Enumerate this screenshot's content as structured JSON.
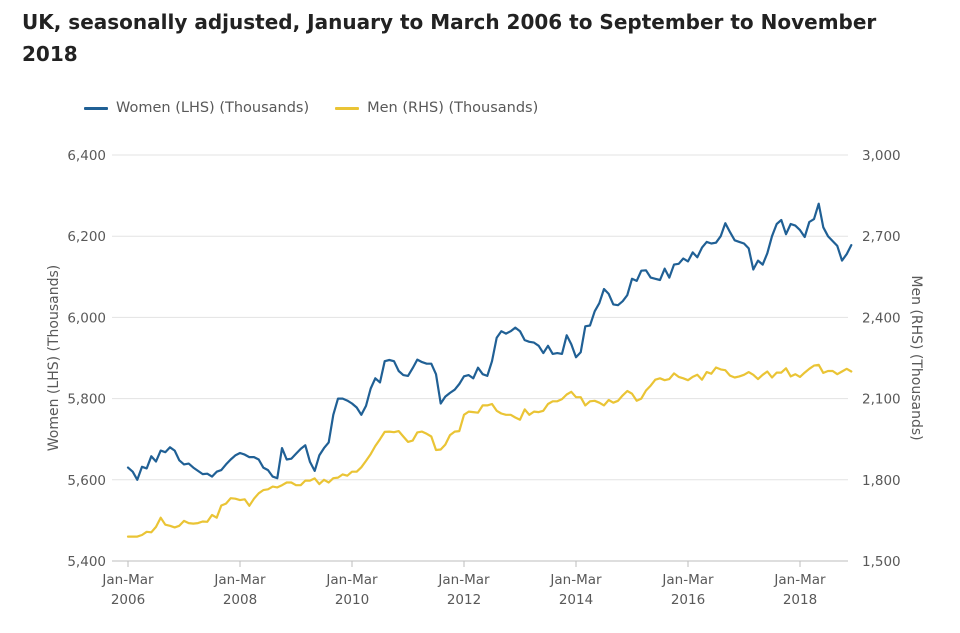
{
  "chart_data": {
    "type": "line",
    "title": "UK, seasonally adjusted, January to March 2006 to September to November 2018",
    "ylabel_left": "Women (LHS) (Thousands)",
    "ylabel_right": "Men (RHS) (Thousands)",
    "ylim_left": [
      5400,
      6400
    ],
    "ylim_right": [
      1500,
      3000
    ],
    "yticks_left": [
      "5,400",
      "5,600",
      "5,800",
      "6,000",
      "6,200",
      "6,400"
    ],
    "yticks_right": [
      "1,500",
      "1,800",
      "2,100",
      "2,400",
      "2,700",
      "3,000"
    ],
    "x_start_period": 0,
    "x_end_period": 152,
    "xticks": [
      {
        "period": 0,
        "line1": "Jan-Mar",
        "line2": "2006"
      },
      {
        "period": 24,
        "line1": "Jan-Mar",
        "line2": "2008"
      },
      {
        "period": 48,
        "line1": "Jan-Mar",
        "line2": "2010"
      },
      {
        "period": 72,
        "line1": "Jan-Mar",
        "line2": "2012"
      },
      {
        "period": 96,
        "line1": "Jan-Mar",
        "line2": "2014"
      },
      {
        "period": 120,
        "line1": "Jan-Mar",
        "line2": "2016"
      },
      {
        "period": 144,
        "line1": "Jan-Mar",
        "line2": "2018"
      }
    ],
    "legend_position": "top-left",
    "grid": true,
    "series": [
      {
        "name": "Women (LHS) (Thousands)",
        "axis": "left",
        "color": "#206095",
        "points": [
          [
            0,
            5630
          ],
          [
            1,
            5620
          ],
          [
            2,
            5600
          ],
          [
            3,
            5632
          ],
          [
            4,
            5628
          ],
          [
            5,
            5658
          ],
          [
            6,
            5645
          ],
          [
            7,
            5672
          ],
          [
            8,
            5668
          ],
          [
            9,
            5680
          ],
          [
            10,
            5672
          ],
          [
            11,
            5648
          ],
          [
            12,
            5638
          ],
          [
            13,
            5640
          ],
          [
            14,
            5630
          ],
          [
            15,
            5622
          ],
          [
            16,
            5614
          ],
          [
            17,
            5615
          ],
          [
            18,
            5608
          ],
          [
            19,
            5620
          ],
          [
            20,
            5624
          ],
          [
            21,
            5638
          ],
          [
            22,
            5650
          ],
          [
            23,
            5660
          ],
          [
            24,
            5666
          ],
          [
            25,
            5662
          ],
          [
            26,
            5656
          ],
          [
            27,
            5656
          ],
          [
            28,
            5650
          ],
          [
            29,
            5630
          ],
          [
            30,
            5624
          ],
          [
            31,
            5608
          ],
          [
            32,
            5604
          ],
          [
            33,
            5678
          ],
          [
            34,
            5650
          ],
          [
            35,
            5652
          ],
          [
            36,
            5664
          ],
          [
            37,
            5676
          ],
          [
            38,
            5685
          ],
          [
            39,
            5644
          ],
          [
            40,
            5622
          ],
          [
            41,
            5660
          ],
          [
            42,
            5678
          ],
          [
            43,
            5692
          ],
          [
            44,
            5760
          ],
          [
            45,
            5800
          ],
          [
            46,
            5800
          ],
          [
            47,
            5795
          ],
          [
            48,
            5788
          ],
          [
            49,
            5778
          ],
          [
            50,
            5760
          ],
          [
            51,
            5782
          ],
          [
            52,
            5825
          ],
          [
            53,
            5850
          ],
          [
            54,
            5840
          ],
          [
            55,
            5892
          ],
          [
            56,
            5895
          ],
          [
            57,
            5892
          ],
          [
            58,
            5868
          ],
          [
            59,
            5858
          ],
          [
            60,
            5856
          ],
          [
            61,
            5875
          ],
          [
            62,
            5896
          ],
          [
            63,
            5890
          ],
          [
            64,
            5886
          ],
          [
            65,
            5886
          ],
          [
            66,
            5860
          ],
          [
            67,
            5788
          ],
          [
            68,
            5805
          ],
          [
            69,
            5814
          ],
          [
            70,
            5822
          ],
          [
            71,
            5836
          ],
          [
            72,
            5855
          ],
          [
            73,
            5858
          ],
          [
            74,
            5850
          ],
          [
            75,
            5876
          ],
          [
            76,
            5860
          ],
          [
            77,
            5856
          ],
          [
            78,
            5892
          ],
          [
            79,
            5950
          ],
          [
            80,
            5966
          ],
          [
            81,
            5960
          ],
          [
            82,
            5966
          ],
          [
            83,
            5975
          ],
          [
            84,
            5966
          ],
          [
            85,
            5944
          ],
          [
            86,
            5940
          ],
          [
            87,
            5938
          ],
          [
            88,
            5930
          ],
          [
            89,
            5912
          ],
          [
            90,
            5930
          ],
          [
            91,
            5910
          ],
          [
            92,
            5912
          ],
          [
            93,
            5910
          ],
          [
            94,
            5956
          ],
          [
            95,
            5934
          ],
          [
            96,
            5902
          ],
          [
            97,
            5914
          ],
          [
            98,
            5978
          ],
          [
            99,
            5980
          ],
          [
            100,
            6015
          ],
          [
            101,
            6035
          ],
          [
            102,
            6070
          ],
          [
            103,
            6058
          ],
          [
            104,
            6032
          ],
          [
            105,
            6030
          ],
          [
            106,
            6040
          ],
          [
            107,
            6055
          ],
          [
            108,
            6095
          ],
          [
            109,
            6090
          ],
          [
            110,
            6115
          ],
          [
            111,
            6116
          ],
          [
            112,
            6098
          ],
          [
            113,
            6095
          ],
          [
            114,
            6092
          ],
          [
            115,
            6120
          ],
          [
            116,
            6098
          ],
          [
            117,
            6130
          ],
          [
            118,
            6132
          ],
          [
            119,
            6145
          ],
          [
            120,
            6138
          ],
          [
            121,
            6160
          ],
          [
            122,
            6148
          ],
          [
            123,
            6172
          ],
          [
            124,
            6186
          ],
          [
            125,
            6182
          ],
          [
            126,
            6184
          ],
          [
            127,
            6200
          ],
          [
            128,
            6232
          ],
          [
            129,
            6210
          ],
          [
            130,
            6190
          ],
          [
            131,
            6186
          ],
          [
            132,
            6182
          ],
          [
            133,
            6170
          ],
          [
            134,
            6118
          ],
          [
            135,
            6140
          ],
          [
            136,
            6130
          ],
          [
            137,
            6158
          ],
          [
            138,
            6200
          ],
          [
            139,
            6230
          ],
          [
            140,
            6240
          ],
          [
            141,
            6205
          ],
          [
            142,
            6230
          ],
          [
            143,
            6226
          ],
          [
            144,
            6215
          ],
          [
            145,
            6198
          ],
          [
            146,
            6235
          ],
          [
            147,
            6242
          ],
          [
            148,
            6280
          ],
          [
            149,
            6222
          ],
          [
            150,
            6200
          ],
          [
            151,
            6188
          ],
          [
            152,
            6176
          ],
          [
            153,
            6140
          ],
          [
            154,
            6156
          ],
          [
            155,
            6178
          ]
        ]
      },
      {
        "name": "Men (RHS) (Thousands)",
        "axis": "right",
        "color": "#eac435",
        "points": [
          [
            0,
            1590
          ],
          [
            1,
            1590
          ],
          [
            2,
            1590
          ],
          [
            3,
            1596
          ],
          [
            4,
            1608
          ],
          [
            5,
            1606
          ],
          [
            6,
            1626
          ],
          [
            7,
            1660
          ],
          [
            8,
            1634
          ],
          [
            9,
            1630
          ],
          [
            10,
            1624
          ],
          [
            11,
            1630
          ],
          [
            12,
            1648
          ],
          [
            13,
            1640
          ],
          [
            14,
            1638
          ],
          [
            15,
            1640
          ],
          [
            16,
            1646
          ],
          [
            17,
            1645
          ],
          [
            18,
            1670
          ],
          [
            19,
            1660
          ],
          [
            20,
            1705
          ],
          [
            21,
            1712
          ],
          [
            22,
            1732
          ],
          [
            23,
            1730
          ],
          [
            24,
            1725
          ],
          [
            25,
            1728
          ],
          [
            26,
            1704
          ],
          [
            27,
            1730
          ],
          [
            28,
            1750
          ],
          [
            29,
            1762
          ],
          [
            30,
            1765
          ],
          [
            31,
            1775
          ],
          [
            32,
            1772
          ],
          [
            33,
            1780
          ],
          [
            34,
            1790
          ],
          [
            35,
            1790
          ],
          [
            36,
            1780
          ],
          [
            37,
            1780
          ],
          [
            38,
            1797
          ],
          [
            39,
            1797
          ],
          [
            40,
            1805
          ],
          [
            41,
            1784
          ],
          [
            42,
            1800
          ],
          [
            43,
            1790
          ],
          [
            44,
            1806
          ],
          [
            45,
            1808
          ],
          [
            46,
            1820
          ],
          [
            47,
            1815
          ],
          [
            48,
            1830
          ],
          [
            49,
            1830
          ],
          [
            50,
            1846
          ],
          [
            51,
            1870
          ],
          [
            52,
            1895
          ],
          [
            53,
            1925
          ],
          [
            54,
            1950
          ],
          [
            55,
            1977
          ],
          [
            56,
            1978
          ],
          [
            57,
            1976
          ],
          [
            58,
            1980
          ],
          [
            59,
            1960
          ],
          [
            60,
            1940
          ],
          [
            61,
            1945
          ],
          [
            62,
            1975
          ],
          [
            63,
            1978
          ],
          [
            64,
            1970
          ],
          [
            65,
            1960
          ],
          [
            66,
            1910
          ],
          [
            67,
            1912
          ],
          [
            68,
            1930
          ],
          [
            69,
            1965
          ],
          [
            70,
            1978
          ],
          [
            71,
            1980
          ],
          [
            72,
            2040
          ],
          [
            73,
            2052
          ],
          [
            74,
            2050
          ],
          [
            75,
            2048
          ],
          [
            76,
            2075
          ],
          [
            77,
            2075
          ],
          [
            78,
            2080
          ],
          [
            79,
            2055
          ],
          [
            80,
            2045
          ],
          [
            81,
            2040
          ],
          [
            82,
            2040
          ],
          [
            83,
            2030
          ],
          [
            84,
            2022
          ],
          [
            85,
            2060
          ],
          [
            86,
            2040
          ],
          [
            87,
            2052
          ],
          [
            88,
            2050
          ],
          [
            89,
            2055
          ],
          [
            90,
            2080
          ],
          [
            91,
            2090
          ],
          [
            92,
            2090
          ],
          [
            93,
            2098
          ],
          [
            94,
            2115
          ],
          [
            95,
            2125
          ],
          [
            96,
            2105
          ],
          [
            97,
            2105
          ],
          [
            98,
            2075
          ],
          [
            99,
            2090
          ],
          [
            100,
            2092
          ],
          [
            101,
            2085
          ],
          [
            102,
            2075
          ],
          [
            103,
            2095
          ],
          [
            104,
            2085
          ],
          [
            105,
            2092
          ],
          [
            106,
            2112
          ],
          [
            107,
            2128
          ],
          [
            108,
            2118
          ],
          [
            109,
            2092
          ],
          [
            110,
            2100
          ],
          [
            111,
            2130
          ],
          [
            112,
            2148
          ],
          [
            113,
            2170
          ],
          [
            114,
            2175
          ],
          [
            115,
            2168
          ],
          [
            116,
            2172
          ],
          [
            117,
            2193
          ],
          [
            118,
            2180
          ],
          [
            119,
            2175
          ],
          [
            120,
            2168
          ],
          [
            121,
            2180
          ],
          [
            122,
            2188
          ],
          [
            123,
            2170
          ],
          [
            124,
            2198
          ],
          [
            125,
            2192
          ],
          [
            126,
            2215
          ],
          [
            127,
            2208
          ],
          [
            128,
            2205
          ],
          [
            129,
            2185
          ],
          [
            130,
            2178
          ],
          [
            131,
            2182
          ],
          [
            132,
            2188
          ],
          [
            133,
            2198
          ],
          [
            134,
            2188
          ],
          [
            135,
            2172
          ],
          [
            136,
            2188
          ],
          [
            137,
            2200
          ],
          [
            138,
            2178
          ],
          [
            139,
            2196
          ],
          [
            140,
            2196
          ],
          [
            141,
            2212
          ],
          [
            142,
            2182
          ],
          [
            143,
            2190
          ],
          [
            144,
            2180
          ],
          [
            145,
            2196
          ],
          [
            146,
            2210
          ],
          [
            147,
            2222
          ],
          [
            148,
            2225
          ],
          [
            149,
            2195
          ],
          [
            150,
            2202
          ],
          [
            151,
            2202
          ],
          [
            152,
            2190
          ],
          [
            153,
            2200
          ],
          [
            154,
            2210
          ],
          [
            155,
            2200
          ]
        ]
      }
    ]
  }
}
